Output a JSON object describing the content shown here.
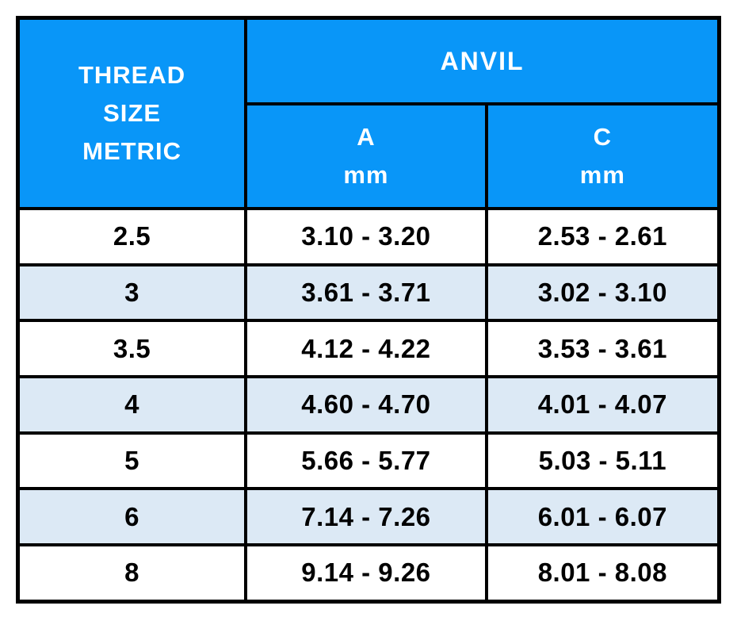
{
  "page": {
    "background": "#FFFFFF"
  },
  "table": {
    "header": {
      "thread_size": {
        "lines": [
          "THREAD",
          "SIZE",
          "METRIC"
        ]
      },
      "anvil": "ANVIL",
      "columns": [
        {
          "letter": "A",
          "unit": "mm"
        },
        {
          "letter": "C",
          "unit": "mm"
        }
      ]
    },
    "rows": [
      {
        "size": "2.5",
        "a_mm": "3.10 - 3.20",
        "c_mm": "2.53 - 2.61"
      },
      {
        "size": "3",
        "a_mm": "3.61 - 3.71",
        "c_mm": "3.02 - 3.10"
      },
      {
        "size": "3.5",
        "a_mm": "4.12 - 4.22",
        "c_mm": "3.53 - 3.61"
      },
      {
        "size": "4",
        "a_mm": "4.60 - 4.70",
        "c_mm": "4.01 - 4.07"
      },
      {
        "size": "5",
        "a_mm": "5.66 - 5.77",
        "c_mm": "5.03 - 5.11"
      },
      {
        "size": "6",
        "a_mm": "7.14 - 7.26",
        "c_mm": "6.01 - 6.07"
      },
      {
        "size": "8",
        "a_mm": "9.14 - 9.26",
        "c_mm": "8.01 - 8.08"
      }
    ],
    "colors": {
      "header_bg": "#0996F8",
      "header_text": "#FFFFFF",
      "row_bg": "#FFFFFF",
      "row_alt_bg": "#DCE9F5",
      "body_text": "#000000",
      "border": "#000000"
    }
  },
  "chart_data": {
    "type": "table",
    "title": "",
    "columns": [
      "THREAD SIZE METRIC",
      "ANVIL A mm",
      "ANVIL C mm"
    ],
    "rows": [
      [
        "2.5",
        "3.10 - 3.20",
        "2.53 - 2.61"
      ],
      [
        "3",
        "3.61 - 3.71",
        "3.02 - 3.10"
      ],
      [
        "3.5",
        "4.12 - 4.22",
        "3.53 - 3.61"
      ],
      [
        "4",
        "4.60 - 4.70",
        "4.01 - 4.07"
      ],
      [
        "5",
        "5.66 - 5.77",
        "5.03 - 5.11"
      ],
      [
        "6",
        "7.14 - 7.26",
        "6.01 - 6.07"
      ],
      [
        "8",
        "9.14 - 9.26",
        "8.01 - 8.08"
      ]
    ]
  }
}
